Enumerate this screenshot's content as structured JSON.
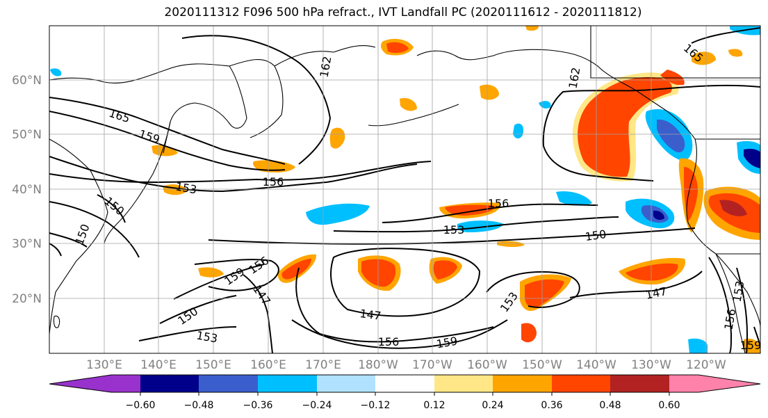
{
  "title": "2020111312 F096 500 hPa refract., IVT Landfall PC (2020111612 - 2020111812)",
  "lat_labels": [
    "60°N",
    "50°N",
    "40°N",
    "30°N",
    "20°N"
  ],
  "lon_labels": [
    "130°E",
    "140°E",
    "150°E",
    "160°E",
    "170°E",
    "180°W",
    "170°W",
    "160°W",
    "150°W",
    "140°W",
    "130°W",
    "120°W"
  ],
  "contour_labels": [
    "165",
    "159",
    "153",
    "156",
    "150",
    "150",
    "162",
    "162",
    "165",
    "156",
    "153",
    "150",
    "159",
    "156",
    "147",
    "150",
    "153",
    "147",
    "156",
    "159",
    "153",
    "147",
    "153",
    "156",
    "159"
  ],
  "colorbar": {
    "colors": [
      "#9932cc",
      "#00008b",
      "#3a5fcd",
      "#00bfff",
      "#b0e2ff",
      "#ffffff",
      "#ffe787",
      "#ffa500",
      "#ff4500",
      "#b22222",
      "#ff82ab"
    ],
    "tick_labels": [
      "−0.60",
      "−0.48",
      "−0.36",
      "−0.24",
      "−0.12",
      "0.12",
      "0.24",
      "0.36",
      "0.48",
      "0.60"
    ]
  },
  "colors": {
    "positive": "#ff4500",
    "negative": "#00bfff",
    "contour": "#000000",
    "grid": "#a0a0a0",
    "coast": "#000000"
  }
}
